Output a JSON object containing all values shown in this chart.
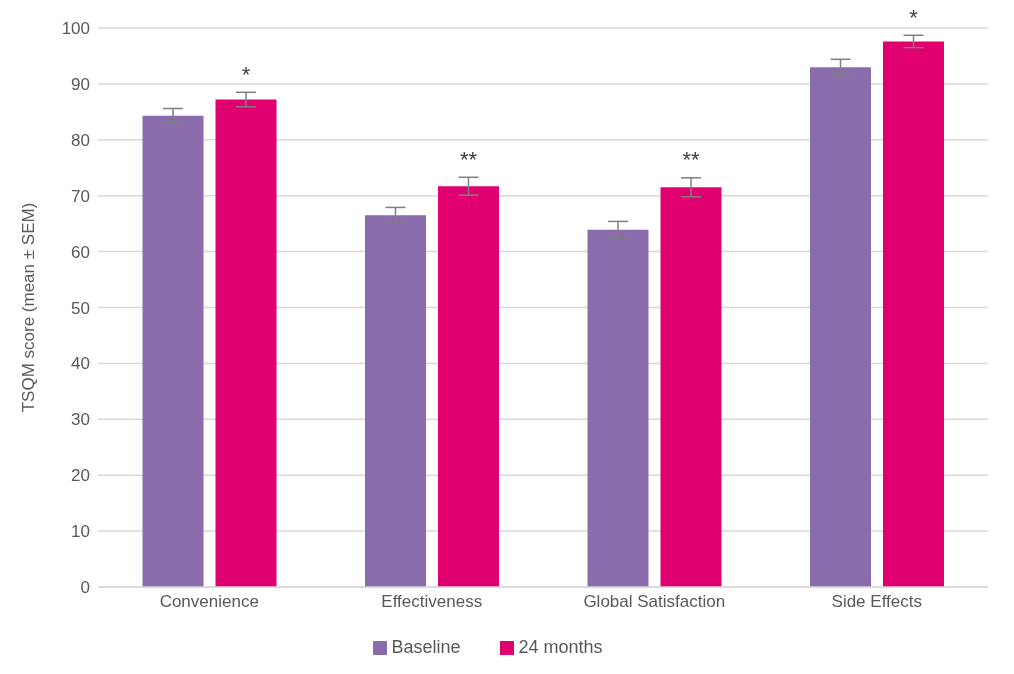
{
  "chart_data": {
    "type": "bar",
    "ylabel": "TSQM score (mean ± SEM)",
    "categories": [
      "Convenience",
      "Effectiveness",
      "Global Satisfaction",
      "Side Effects"
    ],
    "series": [
      {
        "name": "Baseline",
        "color": "#8a6bab",
        "values": [
          84.3,
          66.5,
          63.9,
          93.0
        ],
        "errors": [
          1.3,
          1.4,
          1.5,
          1.4
        ]
      },
      {
        "name": "24 months",
        "color": "#e0006f",
        "values": [
          87.2,
          71.7,
          71.5,
          97.6
        ],
        "errors": [
          1.3,
          1.6,
          1.7,
          1.1
        ]
      }
    ],
    "ylim": [
      0,
      100
    ],
    "yticks": [
      0,
      10,
      20,
      30,
      40,
      50,
      60,
      70,
      80,
      90,
      100
    ],
    "grid": "y",
    "legend": "bottom",
    "annotations": [
      "*",
      "**",
      "**",
      "*"
    ]
  }
}
